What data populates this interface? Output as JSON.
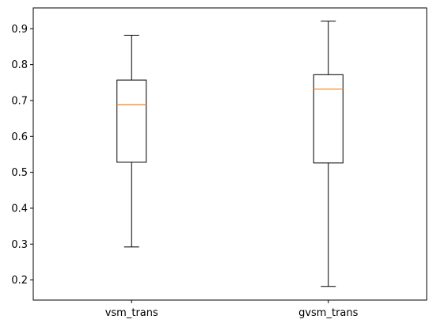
{
  "chart_data": {
    "type": "box",
    "title": "",
    "xlabel": "",
    "ylabel": "",
    "categories": [
      "vsm_trans",
      "gvsm_trans"
    ],
    "series": [
      {
        "category": "vsm_trans",
        "whisker_low": 0.292,
        "q1": 0.528,
        "median": 0.688,
        "q3": 0.757,
        "whisker_high": 0.882
      },
      {
        "category": "gvsm_trans",
        "whisker_low": 0.182,
        "q1": 0.526,
        "median": 0.732,
        "q3": 0.772,
        "whisker_high": 0.921
      }
    ],
    "ylim": [
      0.144,
      0.958
    ],
    "yticks": [
      "0.2",
      "0.3",
      "0.4",
      "0.5",
      "0.6",
      "0.7",
      "0.8",
      "0.9"
    ],
    "grid": false,
    "colors": {
      "box": "#000000",
      "median": "#ff7f0e",
      "axes": "#000000",
      "background": "#ffffff"
    }
  }
}
